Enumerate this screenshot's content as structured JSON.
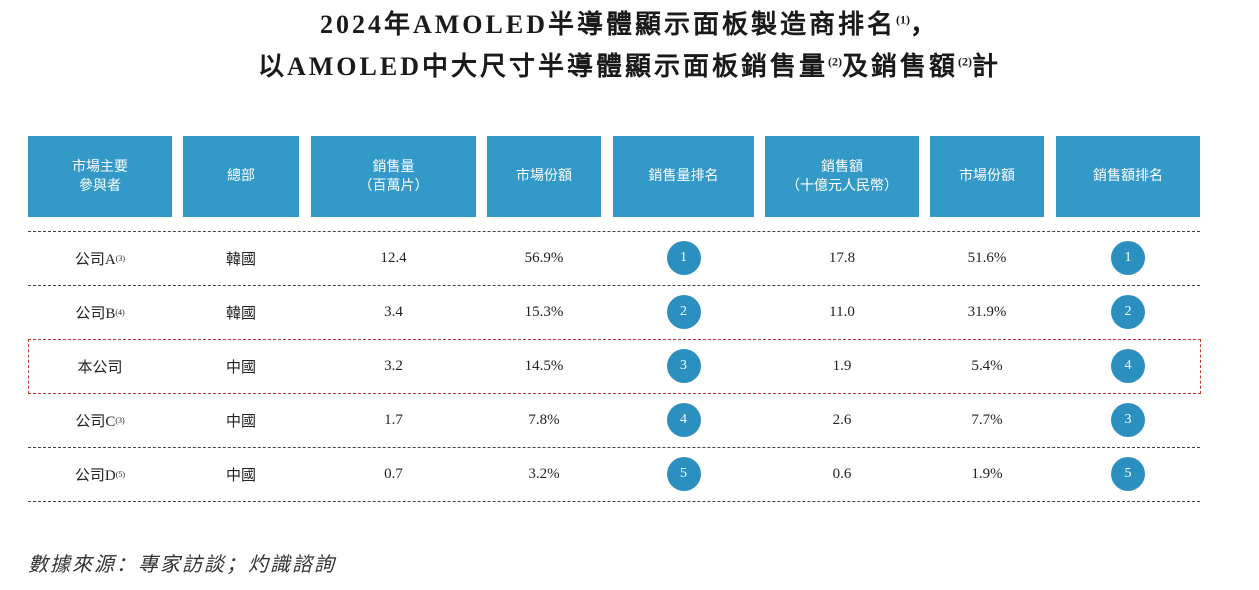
{
  "header": {
    "title_line1": {
      "text": "2024年AMOLED半導體顯示面板製造商排名",
      "note": "(1)",
      "tail": "，"
    },
    "title_line2": {
      "text": "以AMOLED中大尺寸半導體顯示面板銷售量",
      "note1": "(2)",
      "middle": "及銷售額",
      "note2": "(2)",
      "tail": "計"
    }
  },
  "table": {
    "columns": [
      [
        "市場主要",
        "參與者"
      ],
      [
        "總部"
      ],
      [
        "銷售量",
        "（百萬片）"
      ],
      [
        "市場份額"
      ],
      [
        "銷售量排名"
      ],
      [
        "銷售額",
        "（十億元人民幣）"
      ],
      [
        "市場份額"
      ],
      [
        "銷售額排名"
      ]
    ],
    "rows": [
      {
        "company": "公司A",
        "note": "(3)",
        "hq": "韓國",
        "volume": "12.4",
        "volume_share": "56.9%",
        "volume_rank": "1",
        "revenue": "17.8",
        "revenue_share": "51.6%",
        "revenue_rank": "1"
      },
      {
        "company": "公司B",
        "note": "(4)",
        "hq": "韓國",
        "volume": "3.4",
        "volume_share": "15.3%",
        "volume_rank": "2",
        "revenue": "11.0",
        "revenue_share": "31.9%",
        "revenue_rank": "2"
      },
      {
        "company": "本公司",
        "hq": "中國",
        "volume": "3.2",
        "volume_share": "14.5%",
        "volume_rank": "3",
        "revenue": "1.9",
        "revenue_share": "5.4%",
        "revenue_rank": "4"
      },
      {
        "company": "公司C",
        "note": "(3)",
        "hq": "中國",
        "volume": "1.7",
        "volume_share": "7.8%",
        "volume_rank": "4",
        "revenue": "2.6",
        "revenue_share": "7.7%",
        "revenue_rank": "3"
      },
      {
        "company": "公司D",
        "note": "(5)",
        "hq": "中國",
        "volume": "0.7",
        "volume_share": "3.2%",
        "volume_rank": "5",
        "revenue": "0.6",
        "revenue_share": "1.9%",
        "revenue_rank": "5"
      }
    ]
  },
  "source": "數據來源：專家訪談；灼識諮詢"
}
